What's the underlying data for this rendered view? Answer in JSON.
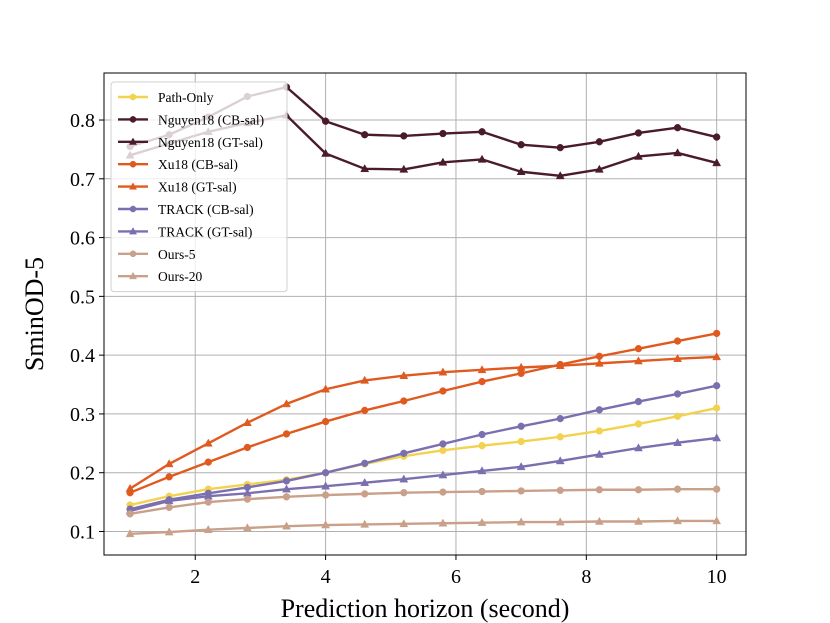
{
  "chart_data": {
    "type": "line",
    "title": "",
    "xlabel": "Prediction horizon (second)",
    "ylabel": "SminOD-5",
    "xlim": [
      0.6,
      10.45
    ],
    "ylim": [
      0.06,
      0.88
    ],
    "grid": true,
    "legend_position": "top-left",
    "xticks": [
      2,
      4,
      6,
      8,
      10
    ],
    "xtick_labels": [
      "2",
      "4",
      "6",
      "8",
      "10"
    ],
    "yticks": [
      0.1,
      0.2,
      0.3,
      0.4,
      0.5,
      0.6,
      0.7,
      0.8
    ],
    "ytick_labels": [
      "0.1",
      "0.2",
      "0.3",
      "0.4",
      "0.5",
      "0.6",
      "0.7",
      "0.8"
    ],
    "x": [
      1.0,
      1.6,
      2.2,
      2.8,
      3.4,
      4.0,
      4.6,
      5.2,
      5.8,
      6.4,
      7.0,
      7.6,
      8.2,
      8.8,
      9.4,
      10.0
    ],
    "series": [
      {
        "name": "Path-Only",
        "color": "#f2d24e",
        "marker": "circle",
        "values": [
          0.145,
          0.16,
          0.172,
          0.18,
          0.188,
          0.2,
          0.215,
          0.228,
          0.238,
          0.246,
          0.253,
          0.261,
          0.271,
          0.283,
          0.296,
          0.31
        ]
      },
      {
        "name": "Nguyen18 (CB-sal)",
        "color": "#4a1b2a",
        "marker": "circle",
        "values": [
          0.755,
          0.775,
          0.805,
          0.84,
          0.856,
          0.798,
          0.775,
          0.773,
          0.777,
          0.78,
          0.758,
          0.753,
          0.763,
          0.778,
          0.787,
          0.771
        ]
      },
      {
        "name": "Nguyen18 (GT-sal)",
        "color": "#4a1b2a",
        "marker": "triangle",
        "values": [
          0.74,
          0.76,
          0.78,
          0.795,
          0.808,
          0.743,
          0.717,
          0.716,
          0.728,
          0.733,
          0.712,
          0.705,
          0.716,
          0.738,
          0.744,
          0.727
        ]
      },
      {
        "name": "Xu18 (CB-sal)",
        "color": "#e05a1f",
        "marker": "circle",
        "values": [
          0.166,
          0.193,
          0.218,
          0.243,
          0.266,
          0.287,
          0.306,
          0.322,
          0.339,
          0.355,
          0.369,
          0.384,
          0.398,
          0.411,
          0.424,
          0.437
        ]
      },
      {
        "name": "Xu18 (GT-sal)",
        "color": "#e05a1f",
        "marker": "triangle",
        "values": [
          0.173,
          0.215,
          0.25,
          0.285,
          0.317,
          0.342,
          0.357,
          0.365,
          0.371,
          0.375,
          0.379,
          0.382,
          0.386,
          0.39,
          0.394,
          0.397
        ]
      },
      {
        "name": "TRACK (CB-sal)",
        "color": "#7b6fb0",
        "marker": "circle",
        "values": [
          0.138,
          0.154,
          0.165,
          0.175,
          0.186,
          0.2,
          0.216,
          0.233,
          0.249,
          0.265,
          0.279,
          0.292,
          0.307,
          0.321,
          0.334,
          0.348
        ]
      },
      {
        "name": "TRACK (GT-sal)",
        "color": "#7b6fb0",
        "marker": "triangle",
        "values": [
          0.135,
          0.152,
          0.16,
          0.165,
          0.172,
          0.177,
          0.183,
          0.189,
          0.196,
          0.203,
          0.21,
          0.22,
          0.231,
          0.242,
          0.251,
          0.259
        ]
      },
      {
        "name": "Ours-5",
        "color": "#c9a089",
        "marker": "circle",
        "values": [
          0.13,
          0.141,
          0.15,
          0.155,
          0.159,
          0.162,
          0.164,
          0.166,
          0.167,
          0.168,
          0.169,
          0.17,
          0.171,
          0.171,
          0.172,
          0.172
        ]
      },
      {
        "name": "Ours-20",
        "color": "#c9a089",
        "marker": "triangle",
        "values": [
          0.096,
          0.099,
          0.103,
          0.106,
          0.109,
          0.111,
          0.112,
          0.113,
          0.114,
          0.115,
          0.116,
          0.116,
          0.117,
          0.117,
          0.118,
          0.118
        ]
      }
    ]
  }
}
